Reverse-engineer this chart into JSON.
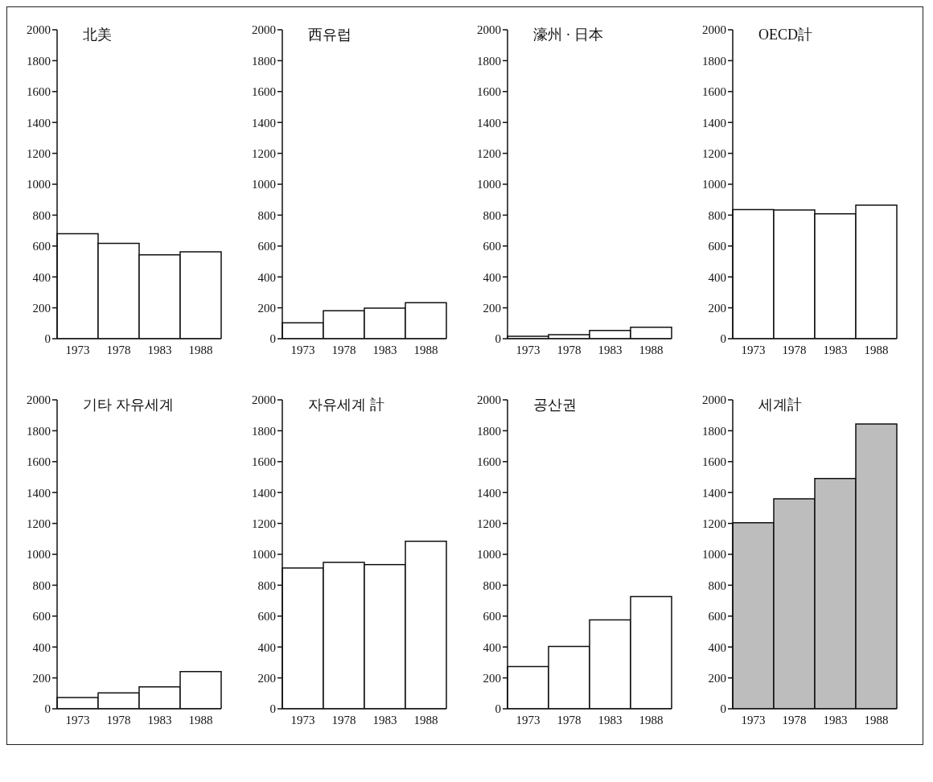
{
  "chart_data": [
    {
      "type": "bar",
      "title": "北美",
      "categories": [
        "1973",
        "1978",
        "1983",
        "1988"
      ],
      "values": [
        680,
        617,
        543,
        563
      ],
      "color": "#ffffff",
      "ylim": [
        0,
        2000
      ],
      "yticks": [
        0,
        200,
        400,
        600,
        800,
        1000,
        1200,
        1400,
        1600,
        1800,
        2000
      ]
    },
    {
      "type": "bar",
      "title": "西유럽",
      "categories": [
        "1973",
        "1978",
        "1983",
        "1988"
      ],
      "values": [
        103,
        181,
        198,
        233
      ],
      "color": "#ffffff",
      "ylim": [
        0,
        2000
      ],
      "yticks": [
        0,
        200,
        400,
        600,
        800,
        1000,
        1200,
        1400,
        1600,
        1800,
        2000
      ]
    },
    {
      "type": "bar",
      "title": "濠州 · 日本",
      "categories": [
        "1973",
        "1978",
        "1983",
        "1988"
      ],
      "values": [
        16,
        26,
        53,
        74
      ],
      "color": "#ffffff",
      "ylim": [
        0,
        2000
      ],
      "yticks": [
        0,
        200,
        400,
        600,
        800,
        1000,
        1200,
        1400,
        1600,
        1800,
        2000
      ]
    },
    {
      "type": "bar",
      "title": "OECD計",
      "categories": [
        "1973",
        "1978",
        "1983",
        "1988"
      ],
      "values": [
        836,
        833,
        809,
        865
      ],
      "color": "#ffffff",
      "ylim": [
        0,
        2000
      ],
      "yticks": [
        0,
        200,
        400,
        600,
        800,
        1000,
        1200,
        1400,
        1600,
        1800,
        2000
      ]
    },
    {
      "type": "bar",
      "title": "기타 자유세계",
      "categories": [
        "1973",
        "1978",
        "1983",
        "1988"
      ],
      "values": [
        73,
        103,
        142,
        241
      ],
      "color": "#ffffff",
      "ylim": [
        0,
        2000
      ],
      "yticks": [
        0,
        200,
        400,
        600,
        800,
        1000,
        1200,
        1400,
        1600,
        1800,
        2000
      ]
    },
    {
      "type": "bar",
      "title": "자유세계 計",
      "categories": [
        "1973",
        "1978",
        "1983",
        "1988"
      ],
      "values": [
        912,
        948,
        934,
        1085
      ],
      "color": "#ffffff",
      "ylim": [
        0,
        2000
      ],
      "yticks": [
        0,
        200,
        400,
        600,
        800,
        1000,
        1200,
        1400,
        1600,
        1800,
        2000
      ]
    },
    {
      "type": "bar",
      "title": "공산권",
      "categories": [
        "1973",
        "1978",
        "1983",
        "1988"
      ],
      "values": [
        274,
        404,
        575,
        727
      ],
      "color": "#ffffff",
      "ylim": [
        0,
        2000
      ],
      "yticks": [
        0,
        200,
        400,
        600,
        800,
        1000,
        1200,
        1400,
        1600,
        1800,
        2000
      ]
    },
    {
      "type": "bar",
      "title": "세계計",
      "categories": [
        "1973",
        "1978",
        "1983",
        "1988"
      ],
      "values": [
        1205,
        1360,
        1491,
        1844
      ],
      "color": "#bdbdbd",
      "ylim": [
        0,
        2000
      ],
      "yticks": [
        0,
        200,
        400,
        600,
        800,
        1000,
        1200,
        1400,
        1600,
        1800,
        2000
      ]
    }
  ]
}
